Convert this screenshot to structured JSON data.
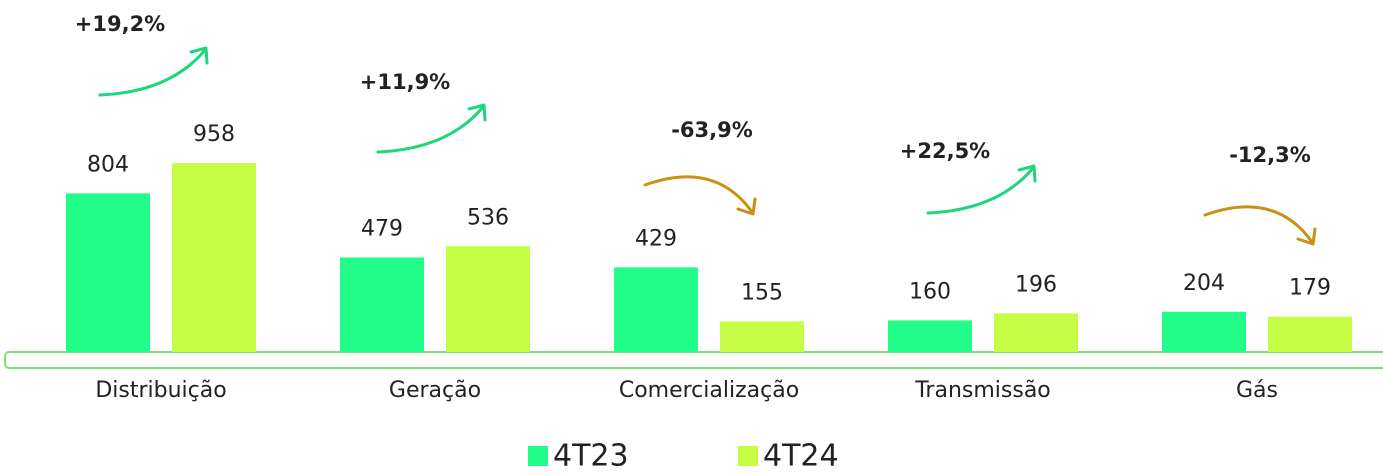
{
  "chart_data": {
    "type": "bar",
    "categories": [
      "Distribuição",
      "Geração",
      "Comercialização",
      "Transmissão",
      "Gás"
    ],
    "series": [
      {
        "name": "4T23",
        "color": "#22fd8a",
        "values": [
          804,
          479,
          429,
          160,
          204
        ]
      },
      {
        "name": "4T24",
        "color": "#c6fd45",
        "values": [
          958,
          536,
          155,
          196,
          179
        ]
      }
    ],
    "annotations": [
      "+19,2%",
      "+11,9%",
      "-63,9%",
      "+22,5%",
      "-12,3%"
    ]
  }
}
